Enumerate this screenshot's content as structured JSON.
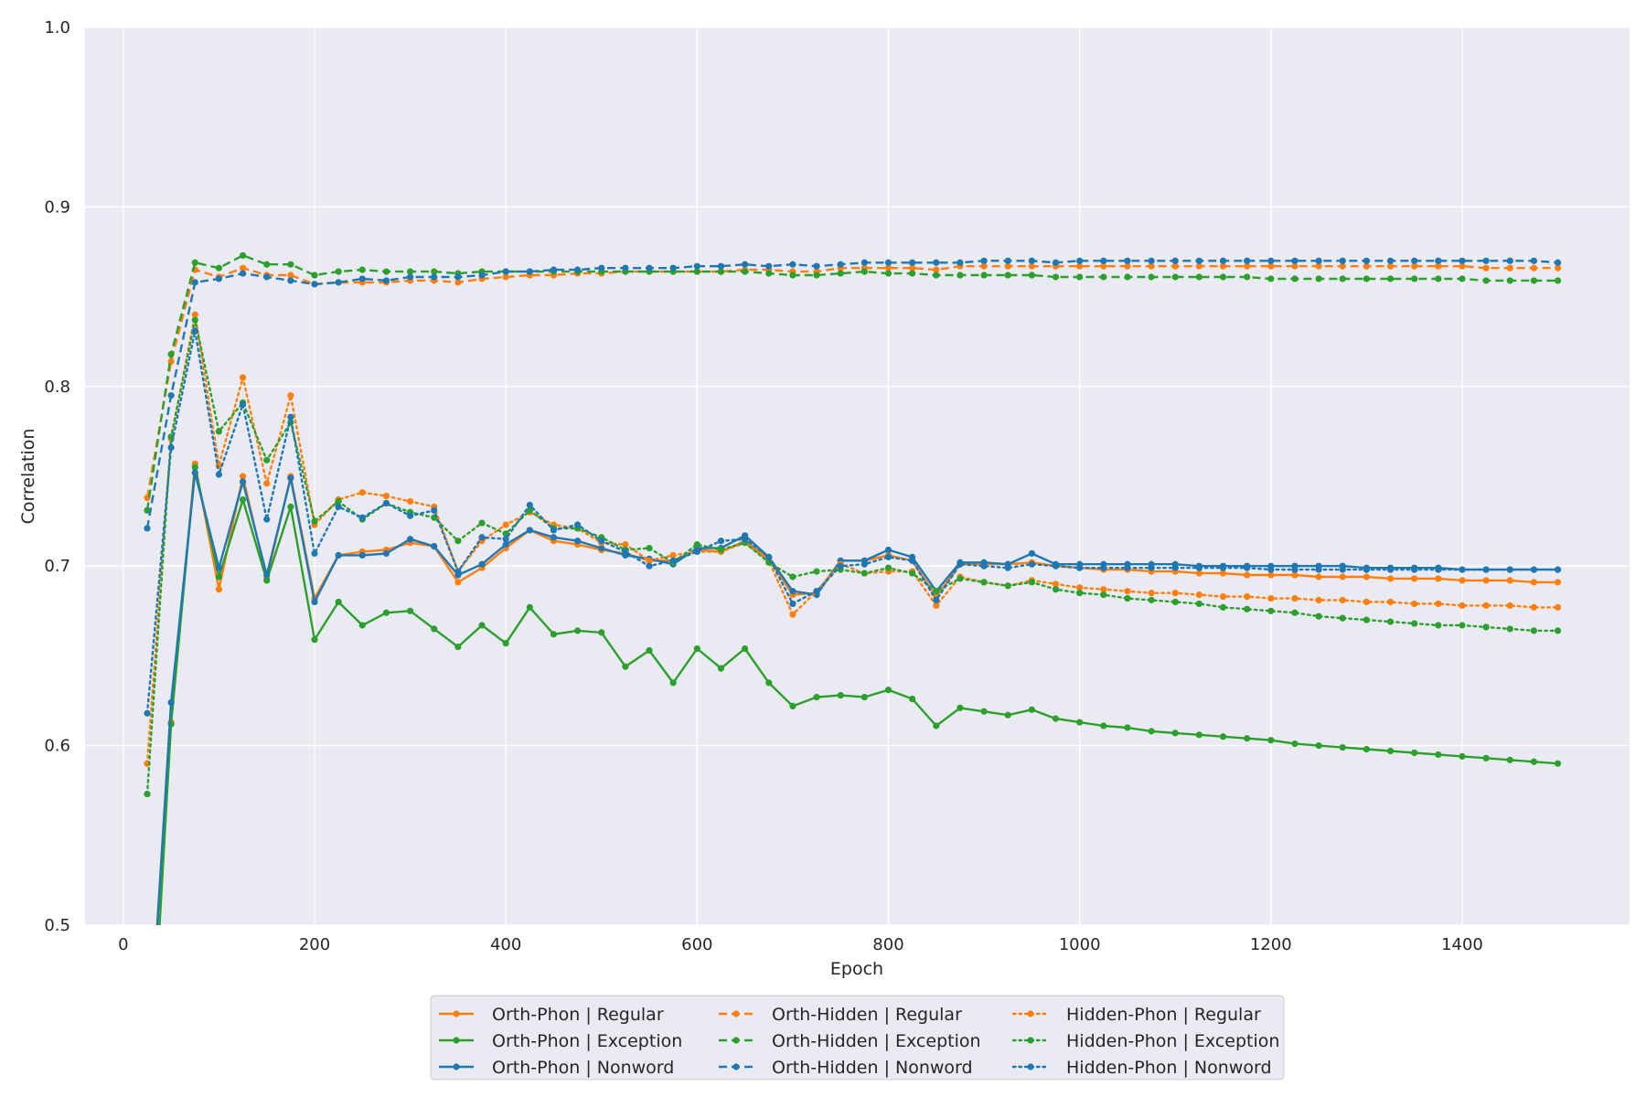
{
  "chart_data": {
    "type": "line",
    "title": "",
    "xlabel": "Epoch",
    "ylabel": "Correlation",
    "xlim": [
      -40,
      1575
    ],
    "ylim": [
      0.5,
      1.0
    ],
    "xticks": [
      0,
      200,
      400,
      600,
      800,
      1000,
      1200,
      1400
    ],
    "yticks": [
      0.5,
      0.6,
      0.7,
      0.8,
      0.9,
      1.0
    ],
    "xtick_labels": [
      "0",
      "200",
      "400",
      "600",
      "800",
      "1000",
      "1200",
      "1400"
    ],
    "ytick_labels": [
      "0.5",
      "0.6",
      "0.7",
      "0.8",
      "0.9",
      "1.0"
    ],
    "grid": true,
    "legend_position": "bottom-center",
    "colors": {
      "regular": "#ff7f0e",
      "exception": "#2ca02c",
      "nonword": "#1f77b4",
      "plot_background": "#eaeaf2",
      "grid": "#ffffff"
    },
    "x": [
      25,
      50,
      75,
      100,
      125,
      150,
      175,
      200,
      225,
      250,
      275,
      300,
      325,
      350,
      375,
      400,
      425,
      450,
      475,
      500,
      525,
      550,
      575,
      600,
      625,
      650,
      675,
      700,
      725,
      750,
      775,
      800,
      825,
      850,
      875,
      900,
      925,
      950,
      975,
      1000,
      1025,
      1050,
      1075,
      1100,
      1125,
      1150,
      1175,
      1200,
      1225,
      1250,
      1275,
      1300,
      1325,
      1350,
      1375,
      1400,
      1425,
      1450,
      1475,
      1500
    ],
    "series": [
      {
        "name": "Orth-Phon | Regular",
        "group": "regular",
        "style": "solid",
        "values": [
          0.42,
          0.613,
          0.757,
          0.687,
          0.75,
          0.693,
          0.75,
          0.682,
          0.706,
          0.708,
          0.709,
          0.713,
          0.711,
          0.691,
          0.699,
          0.71,
          0.72,
          0.714,
          0.712,
          0.709,
          0.707,
          0.703,
          0.703,
          0.709,
          0.708,
          0.714,
          0.704,
          0.684,
          0.685,
          0.703,
          0.703,
          0.706,
          0.703,
          0.683,
          0.701,
          0.701,
          0.701,
          0.702,
          0.7,
          0.699,
          0.698,
          0.698,
          0.697,
          0.697,
          0.696,
          0.696,
          0.695,
          0.695,
          0.695,
          0.694,
          0.694,
          0.694,
          0.693,
          0.693,
          0.693,
          0.692,
          0.692,
          0.692,
          0.691,
          0.691
        ]
      },
      {
        "name": "Orth-Phon | Exception",
        "group": "exception",
        "style": "solid",
        "values": [
          0.38,
          0.612,
          0.755,
          0.694,
          0.737,
          0.692,
          0.733,
          0.659,
          0.68,
          0.667,
          0.674,
          0.675,
          0.665,
          0.655,
          0.667,
          0.657,
          0.677,
          0.662,
          0.664,
          0.663,
          0.644,
          0.653,
          0.635,
          0.654,
          0.643,
          0.654,
          0.635,
          0.622,
          0.627,
          0.628,
          0.627,
          0.631,
          0.626,
          0.611,
          0.621,
          0.619,
          0.617,
          0.62,
          0.615,
          0.613,
          0.611,
          0.61,
          0.608,
          0.607,
          0.606,
          0.605,
          0.604,
          0.603,
          0.601,
          0.6,
          0.599,
          0.598,
          0.597,
          0.596,
          0.595,
          0.594,
          0.593,
          0.592,
          0.591,
          0.59
        ]
      },
      {
        "name": "Orth-Phon | Nonword",
        "group": "nonword",
        "style": "solid",
        "values": [
          0.41,
          0.624,
          0.752,
          0.699,
          0.747,
          0.695,
          0.749,
          0.68,
          0.706,
          0.706,
          0.707,
          0.715,
          0.711,
          0.695,
          0.701,
          0.712,
          0.72,
          0.716,
          0.714,
          0.71,
          0.706,
          0.704,
          0.701,
          0.71,
          0.71,
          0.717,
          0.705,
          0.686,
          0.684,
          0.703,
          0.703,
          0.709,
          0.705,
          0.686,
          0.702,
          0.702,
          0.701,
          0.707,
          0.701,
          0.701,
          0.701,
          0.701,
          0.701,
          0.701,
          0.7,
          0.7,
          0.7,
          0.7,
          0.7,
          0.7,
          0.7,
          0.699,
          0.699,
          0.699,
          0.699,
          0.698,
          0.698,
          0.698,
          0.698,
          0.698
        ]
      },
      {
        "name": "Orth-Hidden | Regular",
        "group": "regular",
        "style": "dashed",
        "values": [
          0.738,
          0.814,
          0.865,
          0.861,
          0.866,
          0.862,
          0.862,
          0.857,
          0.858,
          0.858,
          0.858,
          0.859,
          0.859,
          0.858,
          0.86,
          0.861,
          0.862,
          0.862,
          0.863,
          0.863,
          0.864,
          0.864,
          0.864,
          0.864,
          0.864,
          0.865,
          0.865,
          0.864,
          0.864,
          0.866,
          0.866,
          0.866,
          0.866,
          0.865,
          0.867,
          0.867,
          0.867,
          0.867,
          0.867,
          0.867,
          0.867,
          0.867,
          0.867,
          0.867,
          0.867,
          0.867,
          0.867,
          0.867,
          0.867,
          0.867,
          0.867,
          0.867,
          0.867,
          0.867,
          0.867,
          0.867,
          0.866,
          0.866,
          0.866,
          0.866
        ]
      },
      {
        "name": "Orth-Hidden | Exception",
        "group": "exception",
        "style": "dashed",
        "values": [
          0.731,
          0.818,
          0.869,
          0.866,
          0.873,
          0.868,
          0.868,
          0.862,
          0.864,
          0.865,
          0.864,
          0.864,
          0.864,
          0.863,
          0.864,
          0.864,
          0.864,
          0.864,
          0.864,
          0.864,
          0.864,
          0.864,
          0.864,
          0.864,
          0.864,
          0.864,
          0.863,
          0.862,
          0.862,
          0.863,
          0.864,
          0.863,
          0.863,
          0.862,
          0.862,
          0.862,
          0.862,
          0.862,
          0.861,
          0.861,
          0.861,
          0.861,
          0.861,
          0.861,
          0.861,
          0.861,
          0.861,
          0.86,
          0.86,
          0.86,
          0.86,
          0.86,
          0.86,
          0.86,
          0.86,
          0.86,
          0.859,
          0.859,
          0.859,
          0.859
        ]
      },
      {
        "name": "Orth-Hidden | Nonword",
        "group": "nonword",
        "style": "dashed",
        "values": [
          0.721,
          0.795,
          0.858,
          0.86,
          0.863,
          0.861,
          0.859,
          0.857,
          0.858,
          0.86,
          0.859,
          0.861,
          0.861,
          0.861,
          0.862,
          0.864,
          0.864,
          0.865,
          0.865,
          0.866,
          0.866,
          0.866,
          0.866,
          0.867,
          0.867,
          0.868,
          0.867,
          0.868,
          0.867,
          0.868,
          0.869,
          0.869,
          0.869,
          0.869,
          0.869,
          0.87,
          0.87,
          0.87,
          0.869,
          0.87,
          0.87,
          0.87,
          0.87,
          0.87,
          0.87,
          0.87,
          0.87,
          0.87,
          0.87,
          0.87,
          0.87,
          0.87,
          0.87,
          0.87,
          0.87,
          0.87,
          0.87,
          0.87,
          0.87,
          0.869
        ]
      },
      {
        "name": "Hidden-Phon | Regular",
        "group": "regular",
        "style": "dotted",
        "values": [
          0.59,
          0.771,
          0.84,
          0.756,
          0.805,
          0.746,
          0.795,
          0.723,
          0.737,
          0.741,
          0.739,
          0.736,
          0.733,
          0.697,
          0.714,
          0.723,
          0.73,
          0.723,
          0.721,
          0.713,
          0.712,
          0.703,
          0.706,
          0.708,
          0.708,
          0.713,
          0.703,
          0.673,
          0.686,
          0.701,
          0.696,
          0.697,
          0.697,
          0.678,
          0.694,
          0.691,
          0.689,
          0.692,
          0.69,
          0.688,
          0.687,
          0.686,
          0.685,
          0.685,
          0.684,
          0.683,
          0.683,
          0.682,
          0.682,
          0.681,
          0.681,
          0.68,
          0.68,
          0.679,
          0.679,
          0.678,
          0.678,
          0.678,
          0.677,
          0.677
        ]
      },
      {
        "name": "Hidden-Phon | Exception",
        "group": "exception",
        "style": "dotted",
        "values": [
          0.573,
          0.772,
          0.837,
          0.775,
          0.791,
          0.759,
          0.78,
          0.725,
          0.736,
          0.726,
          0.735,
          0.73,
          0.727,
          0.714,
          0.724,
          0.718,
          0.731,
          0.721,
          0.721,
          0.716,
          0.709,
          0.71,
          0.702,
          0.712,
          0.709,
          0.713,
          0.702,
          0.694,
          0.697,
          0.698,
          0.696,
          0.699,
          0.696,
          0.686,
          0.693,
          0.691,
          0.689,
          0.691,
          0.687,
          0.685,
          0.684,
          0.682,
          0.681,
          0.68,
          0.679,
          0.677,
          0.676,
          0.675,
          0.674,
          0.672,
          0.671,
          0.67,
          0.669,
          0.668,
          0.667,
          0.667,
          0.666,
          0.665,
          0.664,
          0.664
        ]
      },
      {
        "name": "Hidden-Phon | Nonword",
        "group": "nonword",
        "style": "dotted",
        "values": [
          0.618,
          0.766,
          0.831,
          0.751,
          0.79,
          0.726,
          0.783,
          0.707,
          0.733,
          0.727,
          0.735,
          0.728,
          0.731,
          0.697,
          0.716,
          0.715,
          0.734,
          0.72,
          0.723,
          0.714,
          0.708,
          0.7,
          0.703,
          0.708,
          0.714,
          0.715,
          0.705,
          0.679,
          0.686,
          0.7,
          0.701,
          0.705,
          0.703,
          0.681,
          0.701,
          0.7,
          0.699,
          0.701,
          0.7,
          0.699,
          0.699,
          0.699,
          0.699,
          0.699,
          0.699,
          0.699,
          0.699,
          0.698,
          0.698,
          0.698,
          0.698,
          0.698,
          0.698,
          0.698,
          0.698,
          0.698,
          0.698,
          0.698,
          0.698,
          0.698
        ]
      }
    ]
  }
}
